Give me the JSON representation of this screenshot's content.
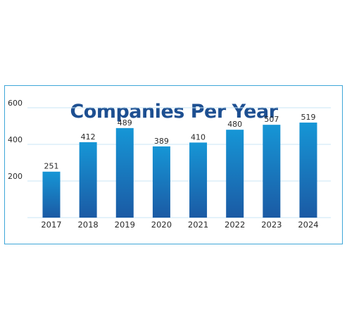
{
  "chart_data": {
    "type": "bar",
    "title": "Companies Per Year",
    "categories": [
      "2017",
      "2018",
      "2019",
      "2020",
      "2021",
      "2022",
      "2023",
      "2024"
    ],
    "values": [
      251,
      412,
      489,
      389,
      410,
      480,
      507,
      519
    ],
    "data_labels": [
      "251",
      "412",
      "489",
      "389",
      "410",
      "480",
      "507",
      "519"
    ],
    "y_ticks": [
      "200",
      "400",
      "600"
    ],
    "ylim": [
      0,
      600
    ],
    "grid": true,
    "legend": "none",
    "colors": {
      "bar_top": "#1696d6",
      "bar_bottom": "#1b5aa4",
      "grid": "#c9e6f5",
      "title": "#1d4f91",
      "frame": "#3ea6d8"
    }
  }
}
